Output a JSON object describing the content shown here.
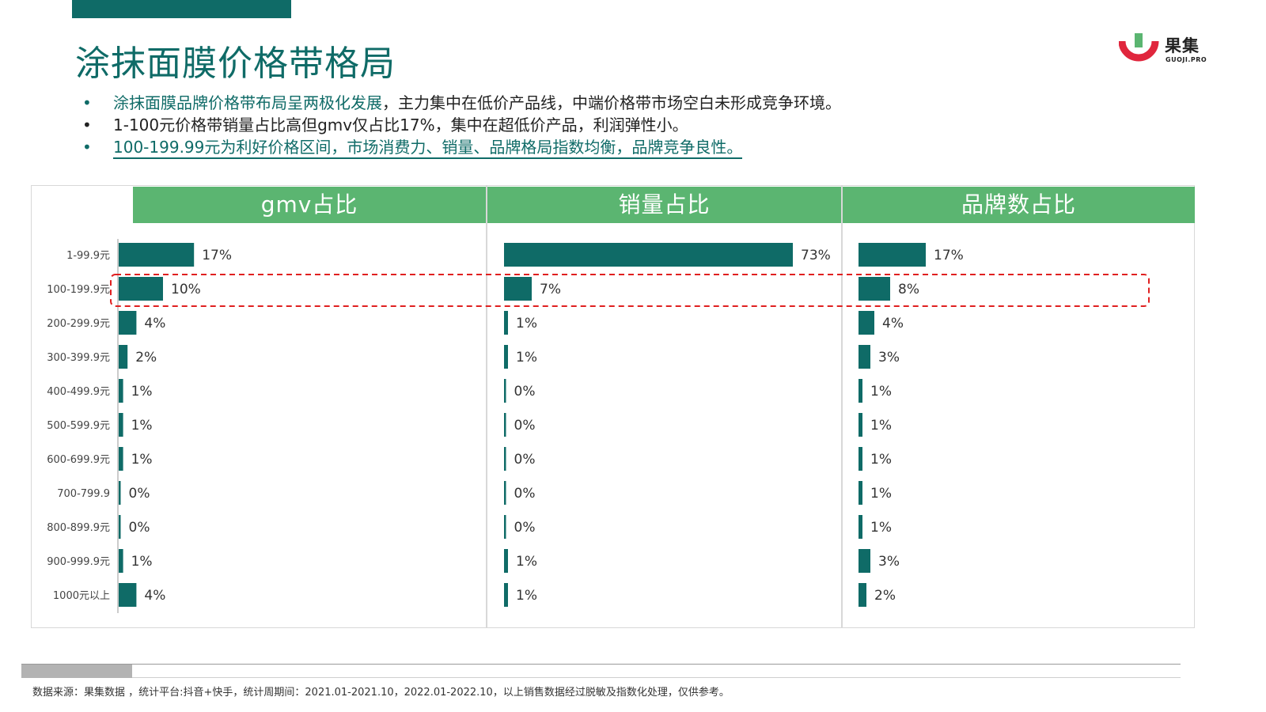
{
  "page": {
    "title": "涂抹面膜价格带格局",
    "bullets": [
      {
        "highlight": "涂抹面膜品牌价格带布局呈两极化发展",
        "text": "，主力集中在低价产品线，中端价格带市场空白未形成竞争环境。"
      },
      {
        "text": "1-100元价格带销量占比高但gmv仅占比17%，集中在超低价产品，利润弹性小。"
      },
      {
        "text": "100-199.99元为利好价格区间，市场消费力、销量、品牌格局指数均衡，品牌竞争良性。"
      }
    ],
    "logo": {
      "cn": "果集",
      "en": "GUOJI.PRO"
    },
    "source": "数据来源：果集数据 ，统计平台:抖音+快手，统计周期间：2021.01-2021.10，2022.01-2022.10，以上销售数据经过脱敏及指数化处理，仅供参考。",
    "colors": {
      "bar": "#0f6b67",
      "header": "#5bb571",
      "highlight_box": "#e02020",
      "title": "#0f6b67"
    }
  },
  "chart_data": {
    "type": "bar",
    "orientation": "horizontal",
    "categories": [
      "1-99.9元",
      "100-199.9元",
      "200-299.9元",
      "300-399.9元",
      "400-499.9元",
      "500-599.9元",
      "600-699.9元",
      "700-799.9",
      "800-899.9元",
      "900-999.9元",
      "1000元以上"
    ],
    "series": [
      {
        "name": "gmv占比",
        "values": [
          17,
          10,
          4,
          2,
          1,
          1,
          1,
          0,
          0,
          1,
          4
        ],
        "labels": [
          "17%",
          "10%",
          "4%",
          "2%",
          "1%",
          "1%",
          "1%",
          "0%",
          "0%",
          "1%",
          "4%"
        ]
      },
      {
        "name": "销量占比",
        "values": [
          73,
          7,
          1,
          1,
          0,
          0,
          0,
          0,
          0,
          1,
          1
        ],
        "labels": [
          "73%",
          "7%",
          "1%",
          "1%",
          "0%",
          "0%",
          "0%",
          "0%",
          "0%",
          "1%",
          "1%"
        ]
      },
      {
        "name": "品牌数占比",
        "values": [
          17,
          8,
          4,
          3,
          1,
          1,
          1,
          1,
          1,
          3,
          2
        ],
        "labels": [
          "17%",
          "8%",
          "4%",
          "3%",
          "1%",
          "1%",
          "1%",
          "1%",
          "1%",
          "3%",
          "2%"
        ]
      }
    ],
    "highlighted_category": "100-199.9元",
    "unit": "%"
  }
}
